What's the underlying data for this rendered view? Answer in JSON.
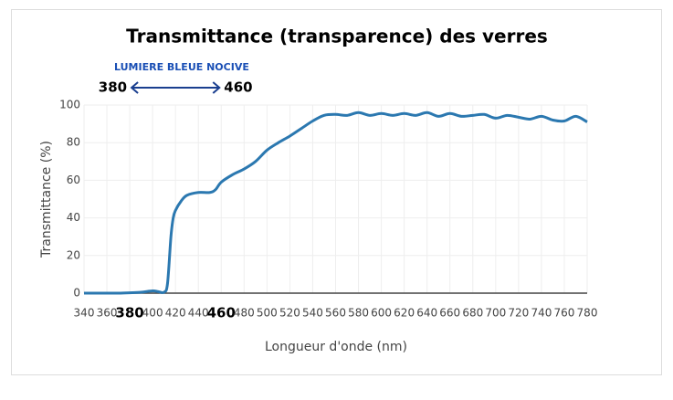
{
  "chart_data": {
    "type": "line",
    "title": "Transmittance (transparence) des verres",
    "xlabel": "Longueur d'onde (nm)",
    "ylabel": "Transmittance (%)",
    "annotation": {
      "text": "LUMIERE BLEUE NOCIVE",
      "start": 380,
      "end": 460
    },
    "x": [
      340,
      350,
      360,
      370,
      380,
      390,
      400,
      405,
      410,
      413,
      416,
      418,
      420,
      425,
      430,
      440,
      450,
      455,
      460,
      470,
      480,
      490,
      500,
      510,
      520,
      530,
      540,
      550,
      560,
      570,
      580,
      590,
      600,
      610,
      620,
      630,
      640,
      650,
      660,
      670,
      680,
      690,
      700,
      710,
      720,
      730,
      740,
      750,
      760,
      770,
      780
    ],
    "series": [
      {
        "name": "Transmittance",
        "color": "#2b78b0",
        "values": [
          0,
          0,
          0,
          0,
          0.2,
          0.5,
          1.2,
          0.8,
          0.5,
          5,
          30,
          40,
          44,
          49,
          52,
          53.5,
          53.5,
          55,
          59,
          63,
          66,
          70,
          76,
          80,
          83.5,
          87.5,
          91.5,
          94.5,
          95,
          94.5,
          96,
          94.5,
          95.5,
          94.5,
          95.5,
          94.5,
          96,
          94,
          95.5,
          94,
          94.5,
          95,
          93,
          94.5,
          93.5,
          92.5,
          94,
          92,
          91.5,
          94,
          91
        ]
      }
    ],
    "xlim": [
      340,
      780
    ],
    "xticks": [
      340,
      360,
      380,
      400,
      420,
      440,
      460,
      480,
      500,
      520,
      540,
      560,
      580,
      600,
      620,
      640,
      660,
      680,
      700,
      720,
      740,
      760,
      780
    ],
    "ylim": [
      0,
      100
    ],
    "yticks": [
      0,
      20,
      40,
      60,
      80,
      100
    ],
    "grid": true
  }
}
